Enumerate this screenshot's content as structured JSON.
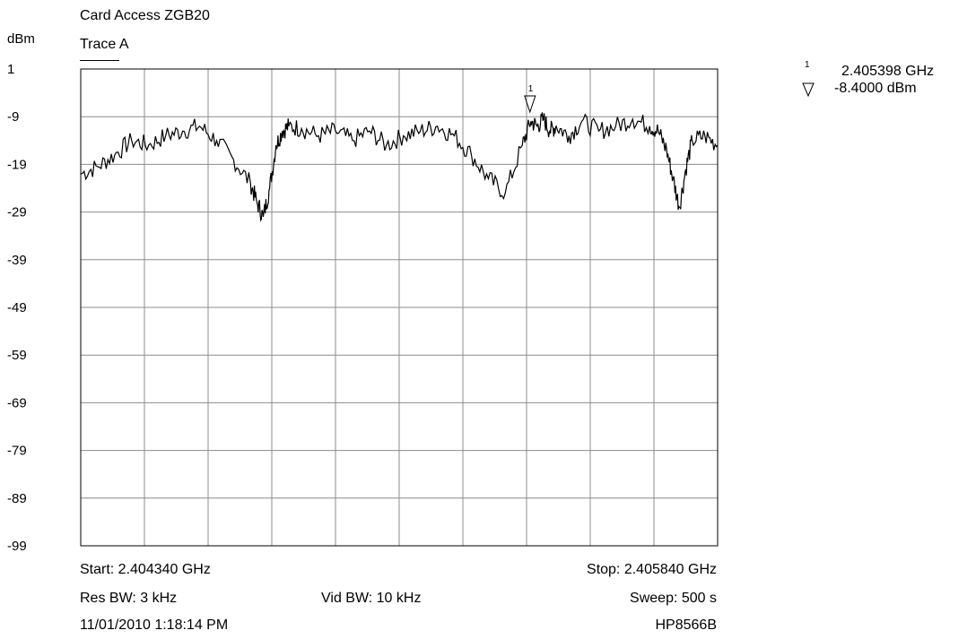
{
  "header": {
    "title": "Card Access ZGB20",
    "trace_label": "Trace A",
    "y_unit": "dBm"
  },
  "marker_readout": {
    "number": "1",
    "frequency": "2.405398 GHz",
    "level": "-8.4000 dBm"
  },
  "footer": {
    "start": "Start: 2.404340 GHz",
    "stop": "Stop: 2.405840 GHz",
    "res_bw": "Res BW: 3 kHz",
    "vid_bw": "Vid BW: 10 kHz",
    "sweep": "Sweep: 500 s",
    "datetime": "11/01/2010 1:18:14 PM",
    "instrument": "HP8566B"
  },
  "chart_data": {
    "type": "line",
    "title": "Card Access ZGB20",
    "subtitle": "Trace A",
    "ylabel": "dBm",
    "xlabel": "",
    "xlim": [
      2.40434,
      2.40584
    ],
    "ylim": [
      -99,
      1
    ],
    "yticks": [
      "1",
      "-9",
      "-19",
      "-29",
      "-39",
      "-49",
      "-59",
      "-69",
      "-79",
      "-89",
      "-99"
    ],
    "grid": true,
    "series": [
      {
        "x": [
          2.40434,
          2.40438,
          2.40442,
          2.40446,
          2.4045,
          2.40454,
          2.40458,
          2.40462,
          2.40466,
          2.4047,
          2.40474,
          2.404755,
          2.40477,
          2.404785,
          2.4048,
          2.404815,
          2.40483,
          2.40486,
          2.4049,
          2.40494,
          2.40498,
          2.40502,
          2.40506,
          2.4051,
          2.40514,
          2.40518,
          2.40522,
          2.40526,
          2.4053,
          2.40534,
          2.40538,
          2.4054,
          2.405415,
          2.40543,
          2.405445,
          2.40546,
          2.40549,
          2.40552,
          2.40556,
          2.4056,
          2.40564,
          2.40568,
          2.4057,
          2.40572,
          2.405735,
          2.40575,
          2.405765,
          2.40578,
          2.40581,
          2.40584
        ],
        "y": [
          -21,
          -19.5,
          -17,
          -14,
          -15,
          -13,
          -12,
          -11,
          -14,
          -18,
          -23,
          -27,
          -30,
          -24,
          -15,
          -12,
          -11,
          -11.5,
          -13,
          -12,
          -14,
          -12,
          -15,
          -13,
          -12,
          -11,
          -13,
          -17,
          -22,
          -25,
          -15,
          -10,
          -11,
          -9.5,
          -12,
          -11,
          -13,
          -10,
          -12,
          -11,
          -9.5,
          -11,
          -12,
          -16,
          -22,
          -28,
          -20,
          -14,
          -13,
          -15
        ]
      }
    ],
    "marker": {
      "label": "1",
      "x": 2.405398,
      "y": -8.4
    }
  }
}
